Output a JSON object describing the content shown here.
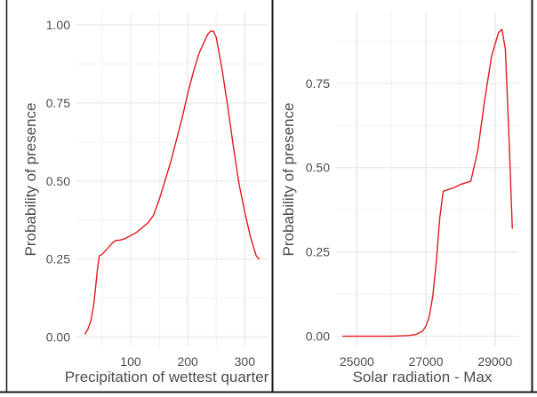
{
  "chart_data": [
    {
      "type": "line",
      "xlabel": "Precipitation of wettest quarter",
      "ylabel": "Probability of presence",
      "xticks": [
        100,
        200,
        300
      ],
      "xtick_labels": [
        "100",
        "200",
        "300"
      ],
      "yticks": [
        0.0,
        0.25,
        0.5,
        0.75,
        1.0
      ],
      "ytick_labels": [
        "0.00",
        "0.25",
        "0.50",
        "0.75",
        "1.00"
      ],
      "xlim": [
        5,
        340
      ],
      "ylim": [
        -0.03,
        1.04
      ],
      "grid": true,
      "line_color": "#e41a1c",
      "series": [
        {
          "x": [
            20,
            25,
            30,
            35,
            38,
            42,
            45,
            50,
            55,
            60,
            65,
            70,
            75,
            80,
            90,
            100,
            110,
            120,
            130,
            140,
            150,
            160,
            170,
            180,
            190,
            200,
            210,
            220,
            230,
            235,
            240,
            245,
            250,
            260,
            270,
            280,
            285,
            290,
            300,
            310,
            320,
            325
          ],
          "y": [
            0.01,
            0.025,
            0.05,
            0.1,
            0.15,
            0.22,
            0.26,
            0.265,
            0.275,
            0.285,
            0.295,
            0.305,
            0.31,
            0.31,
            0.315,
            0.325,
            0.335,
            0.35,
            0.365,
            0.39,
            0.44,
            0.5,
            0.56,
            0.63,
            0.7,
            0.78,
            0.85,
            0.91,
            0.95,
            0.97,
            0.98,
            0.98,
            0.96,
            0.86,
            0.74,
            0.61,
            0.55,
            0.49,
            0.4,
            0.32,
            0.26,
            0.25
          ]
        }
      ]
    },
    {
      "type": "line",
      "xlabel": "Solar radiation - Max",
      "ylabel": "Probability of presence",
      "xticks": [
        25000,
        27000,
        29000
      ],
      "xtick_labels": [
        "25000",
        "27000",
        "29000"
      ],
      "yticks": [
        0.0,
        0.25,
        0.5,
        0.75
      ],
      "ytick_labels": [
        "0.00",
        "0.25",
        "0.50",
        "0.75"
      ],
      "xlim": [
        24400,
        29700
      ],
      "ylim": [
        -0.03,
        0.96
      ],
      "grid": true,
      "line_color": "#e41a1c",
      "series": [
        {
          "x": [
            24600,
            25500,
            26000,
            26500,
            26700,
            26900,
            27000,
            27100,
            27200,
            27300,
            27400,
            27500,
            27800,
            28000,
            28300,
            28500,
            28700,
            28900,
            29100,
            29200,
            29300,
            29400,
            29500
          ],
          "y": [
            0.0,
            0.0,
            0.0,
            0.002,
            0.005,
            0.015,
            0.03,
            0.06,
            0.12,
            0.22,
            0.35,
            0.43,
            0.44,
            0.45,
            0.46,
            0.55,
            0.7,
            0.83,
            0.9,
            0.91,
            0.85,
            0.6,
            0.32
          ]
        }
      ]
    }
  ]
}
